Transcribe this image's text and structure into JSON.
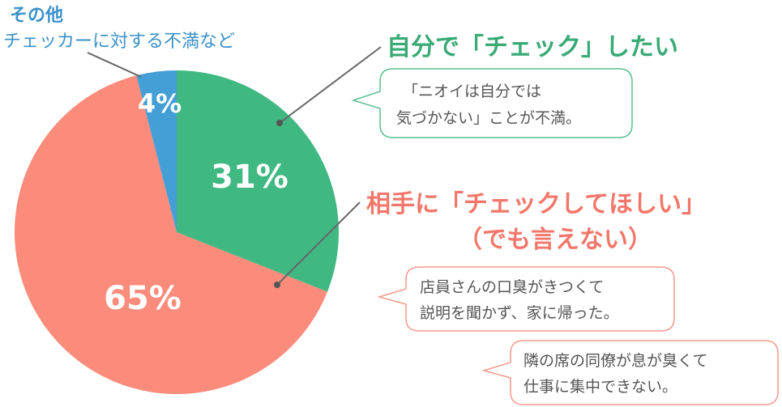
{
  "chart_data": {
    "type": "pie",
    "slices": [
      {
        "label": "自分で「チェック」したい",
        "value": 31,
        "display": "31%",
        "color": "#40b882"
      },
      {
        "label": "相手に「チェックしてほしい」",
        "value": 65,
        "display": "65%",
        "color": "#fb8c7b"
      },
      {
        "label": "その他",
        "value": 4,
        "display": "4%",
        "color": "#439fd6"
      }
    ]
  },
  "labels": {
    "green_title": "自分で「チェック」したい",
    "red_title_1": "相手に「チェックしてほしい」",
    "red_title_2": "（でも言えない）",
    "other_title": "その他",
    "other_sub": "チェッカーに対する不満など"
  },
  "bubbles": {
    "green": [
      "「ニオイは自分では",
      "気づかない」ことが不満。"
    ],
    "red1": [
      "店員さんの口臭がきつくて",
      "説明を聞かず、家に帰った。"
    ],
    "red2": [
      "隣の席の同僚が息が臭くて",
      "仕事に集中できない。"
    ]
  },
  "colors": {
    "green": "#40b882",
    "red": "#fb8c7b",
    "blue": "#439fd6",
    "green_text": "#3aaa76",
    "red_text": "#f2776a",
    "blue_text": "#3b91c9"
  }
}
